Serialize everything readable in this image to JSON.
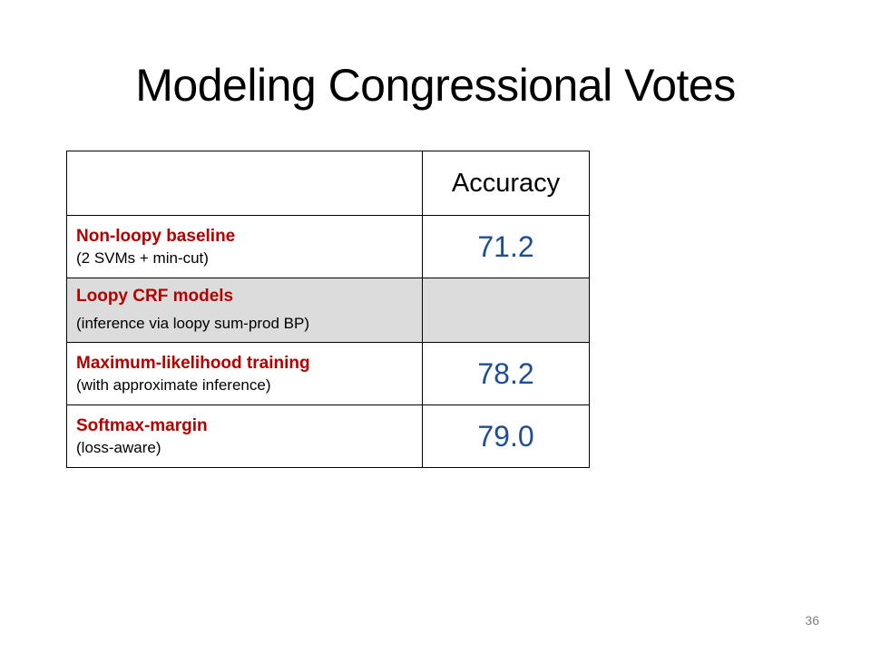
{
  "slide": {
    "title": "Modeling Congressional Votes",
    "page_number": "36"
  },
  "table": {
    "header": {
      "corner": "",
      "accuracy": "Accuracy"
    },
    "rows": [
      {
        "name": "Non-loopy baseline",
        "note": "(2 SVMs + min-cut)",
        "value": "71.2"
      },
      {
        "name": "Loopy CRF models",
        "note": "(inference via loopy sum-prod BP)",
        "value": ""
      },
      {
        "name": "Maximum-likelihood training",
        "note": "(with approximate inference)",
        "value": "78.2"
      },
      {
        "name": "Softmax-margin",
        "note": "(loss-aware)",
        "value": "79.0"
      }
    ]
  },
  "colors": {
    "method_name": "#b30000",
    "accuracy_value": "#1f4e99",
    "section_fill": "#dcdcdc",
    "page_number": "#808080"
  }
}
